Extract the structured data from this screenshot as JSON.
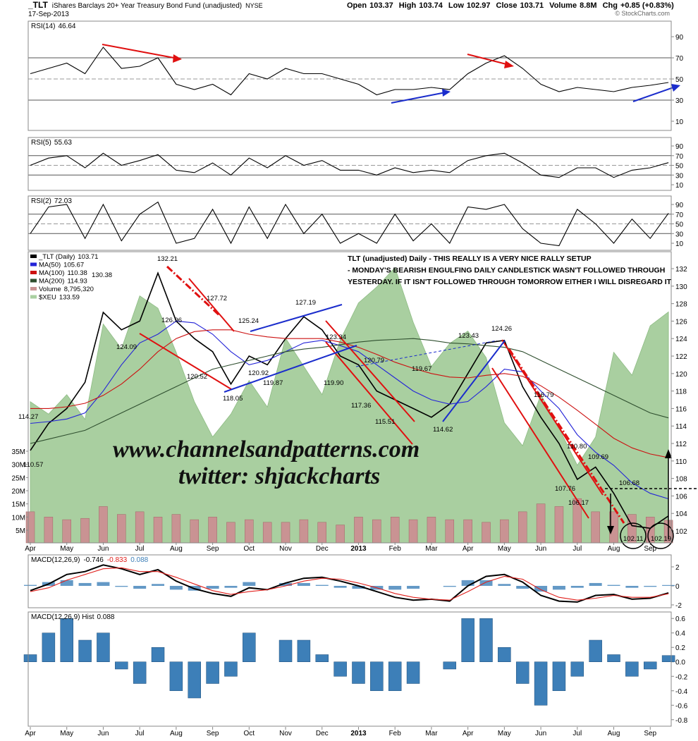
{
  "header": {
    "symbol": "_TLT",
    "name": "iShares Barclays 20+ Year Treasury Bond Fund (unadjusted)",
    "exchange": "NYSE",
    "date": "17-Sep-2013",
    "copyright": "© StockCharts.com",
    "quote": [
      {
        "label": "Open",
        "value": 103.37
      },
      {
        "label": "High",
        "value": 103.74
      },
      {
        "label": "Low",
        "value": 102.97
      },
      {
        "label": "Close",
        "value": 103.71
      },
      {
        "label": "Volume",
        "value": "8.8M"
      },
      {
        "label": "Chg",
        "value": "+0.85 (+0.83%)"
      }
    ]
  },
  "chart_data": [
    {
      "type": "line",
      "ylim": [
        1.3,
        104.7
      ],
      "yticks": [
        10,
        30,
        50,
        70,
        90
      ],
      "ref_lines": [
        30,
        50,
        70
      ],
      "series": [
        {
          "name": "RSI(14)",
          "color": "#000000",
          "values": [
            55,
            60,
            65,
            55,
            80,
            60,
            62,
            70,
            45,
            40,
            45,
            35,
            55,
            50,
            60,
            55,
            55,
            50,
            45,
            35,
            40,
            40,
            42,
            40,
            55,
            65,
            72,
            60,
            45,
            38,
            42,
            40,
            38,
            42,
            44,
            46.64
          ]
        }
      ]
    },
    {
      "type": "line",
      "ylim": [
        -1.6,
        107.5
      ],
      "yticks": [
        10,
        30,
        50,
        70,
        90
      ],
      "ref_lines": [
        30,
        50,
        70
      ],
      "series": [
        {
          "name": "RSI(5)",
          "color": "#000000",
          "values": [
            50,
            65,
            70,
            45,
            75,
            50,
            60,
            72,
            40,
            35,
            55,
            30,
            65,
            45,
            70,
            50,
            60,
            40,
            40,
            30,
            45,
            35,
            40,
            35,
            60,
            70,
            75,
            55,
            30,
            25,
            45,
            45,
            25,
            40,
            45,
            55.63
          ]
        }
      ]
    },
    {
      "type": "line",
      "ylim": [
        -4.5,
        107.5
      ],
      "yticks": [
        10,
        30,
        50,
        70,
        90
      ],
      "ref_lines": [
        30,
        50,
        70
      ],
      "series": [
        {
          "name": "RSI(2)",
          "color": "#000000",
          "values": [
            30,
            85,
            90,
            20,
            90,
            15,
            70,
            95,
            10,
            20,
            80,
            10,
            85,
            20,
            90,
            30,
            70,
            10,
            30,
            10,
            70,
            15,
            50,
            10,
            85,
            80,
            90,
            40,
            10,
            5,
            80,
            50,
            10,
            60,
            20,
            72.03
          ]
        }
      ]
    },
    {
      "type": "price",
      "categories": [
        "Apr",
        null,
        "May",
        null,
        "Jun",
        null,
        "Jul",
        null,
        "Aug",
        null,
        "Sep",
        null,
        "Oct",
        null,
        "Nov",
        null,
        "Dec",
        null,
        "2013",
        null,
        "Feb",
        null,
        "Mar",
        null,
        "Apr",
        null,
        "May",
        null,
        "Jun",
        null,
        "Jul",
        null,
        "Aug",
        null,
        "Sep",
        null
      ],
      "ylim": [
        100.63,
        133.94
      ],
      "yticks": [
        102,
        104,
        106,
        108,
        110,
        112,
        114,
        116,
        118,
        120,
        122,
        124,
        126,
        128,
        130,
        132
      ],
      "series": [
        {
          "name": "_TLT (Daily)",
          "color": "#000000",
          "values": [
            111.2,
            114.3,
            116,
            119,
            127,
            125,
            126,
            131.5,
            126,
            124,
            122.5,
            118.8,
            122,
            121,
            124,
            126.5,
            125,
            122,
            121,
            118,
            117,
            116,
            115,
            116.5,
            120,
            123.5,
            123.8,
            118.5,
            115,
            112,
            107.9,
            109.3,
            106.3,
            102.6,
            102.3,
            103.71
          ]
        },
        {
          "name": "MA(50)",
          "color": "#2424d8",
          "values": [
            114.3,
            114.5,
            114.8,
            115.5,
            118,
            121,
            123.5,
            124.5,
            126,
            125.8,
            124.5,
            122.5,
            121,
            121.5,
            122.5,
            123.5,
            123.8,
            123.2,
            122.5,
            121,
            119.5,
            118,
            117,
            116.5,
            116.8,
            118.5,
            120.5,
            120.2,
            118,
            116,
            113,
            111,
            109.5,
            107.5,
            106.3,
            105.67
          ]
        },
        {
          "name": "MA(100)",
          "color": "#cc1010",
          "values": [
            116,
            116,
            116.2,
            116.6,
            117.5,
            118.8,
            120.5,
            122.5,
            124,
            124.8,
            125,
            125,
            124.5,
            124.2,
            124,
            124,
            124,
            123.6,
            123,
            122.2,
            121.3,
            120.6,
            120,
            119.6,
            119.5,
            119.8,
            120,
            119.7,
            118.6,
            117.3,
            115.8,
            114.2,
            112.6,
            111.5,
            110.8,
            110.38
          ]
        },
        {
          "name": "MA(200)",
          "color": "#2f4f2f",
          "values": [
            112,
            112.5,
            113,
            113.5,
            114.5,
            115.5,
            116.5,
            117.5,
            118.5,
            119.5,
            120.5,
            121,
            121.5,
            122,
            122.5,
            122.8,
            123,
            123.3,
            123.6,
            123.8,
            123.9,
            124,
            123.8,
            123.5,
            123.4,
            123.2,
            123,
            122.5,
            121.5,
            120.5,
            119.5,
            118.5,
            117.5,
            116.5,
            115.5,
            114.93
          ]
        }
      ],
      "volume": {
        "name": "Volume",
        "legend_label": "8,795,320",
        "color": "#c99393",
        "ylim": [
          180000,
          110800000
        ],
        "yticks": [
          {
            "value": 5000000,
            "label": "5M"
          },
          {
            "value": 10000000,
            "label": "10M"
          },
          {
            "value": 15000000,
            "label": "15M"
          },
          {
            "value": 20000000,
            "label": "20M"
          },
          {
            "value": 25000000,
            "label": "25M"
          },
          {
            "value": 30000000,
            "label": "30M"
          },
          {
            "value": 35000000,
            "label": "35M"
          }
        ],
        "values": [
          12000000,
          10000000,
          9000000,
          9500000,
          14000000,
          11000000,
          12000000,
          10000000,
          11000000,
          9000000,
          10000000,
          8000000,
          9000000,
          8000000,
          8000000,
          9000000,
          8000000,
          7000000,
          10000000,
          9000000,
          10000000,
          9000000,
          10000000,
          9000000,
          9000000,
          8000000,
          9000000,
          12000000,
          15000000,
          14000000,
          17000000,
          12000000,
          12000000,
          11000000,
          10000000,
          8795320
        ]
      },
      "overlay": {
        "name": "$XEU",
        "color": "#a9cfa0",
        "ylim": [
          120.5,
          137
        ],
        "values": [
          128.5,
          127.8,
          128.9,
          127.5,
          132.9,
          131.5,
          134.5,
          133.8,
          131.3,
          128.5,
          126.5,
          127.8,
          129.7,
          128.2,
          132.1,
          130.5,
          128.9,
          132,
          134.1,
          135,
          136.1,
          133,
          130.5,
          131.8,
          132.5,
          131,
          127.3,
          126,
          128.9,
          127,
          124.9,
          126.5,
          131.3,
          130,
          132.8,
          133.59
        ]
      },
      "price_labels": [
        130.38,
        132.21,
        127.72,
        126.96,
        125.24,
        127.19,
        123.34,
        124.09,
        123.43,
        124.26,
        120.79,
        119.67,
        120.52,
        120.92,
        119.87,
        {
          "value": 119.9,
          "label": "119.90"
        },
        118.05,
        117.36,
        116.79,
        115.51,
        114.62,
        114.27,
        110.57,
        {
          "value": 110.8,
          "label": "110.80"
        },
        109.69,
        107.76,
        106.68,
        106.17,
        102.11,
        102.19
      ],
      "notes": [
        "TLT (unadjusted) Daily - THIS REALLY IS A VERY NICE RALLY SETUP",
        "- MONDAY'S BEARISH ENGULFING DAILY CANDLESTICK WASN'T FOLLOWED THROUGH",
        "YESTERDAY. IF IT ISN'T FOLLOWED THROUGH TOMORROW EITHER I WILL DISREGARD IT"
      ],
      "watermark": [
        "www.channelsandpatterns.com",
        "twitter: shjackcharts"
      ]
    },
    {
      "type": "macd",
      "ylim": [
        -2.3,
        3.26
      ],
      "yticks": [
        -2,
        0,
        2
      ],
      "series": [
        {
          "name": "MACD(12,26,9)",
          "color": "#000000",
          "values": [
            -0.5,
            0.2,
            1.2,
            1.5,
            2.2,
            1.8,
            1.2,
            1.7,
            0.5,
            -0.3,
            -0.8,
            -1.1,
            -0.2,
            -0.4,
            0.3,
            0.8,
            0.9,
            0.5,
            0,
            -0.6,
            -1.2,
            -1.5,
            -1.4,
            -1.6,
            0,
            1,
            1.2,
            0.4,
            -1,
            -1.6,
            -1.7,
            -1,
            -0.9,
            -1.4,
            -1.3,
            -0.746
          ]
        },
        {
          "color": "#e0201c",
          "values": [
            -0.6,
            -0.2,
            0.6,
            1.2,
            1.8,
            1.9,
            1.5,
            1.5,
            0.9,
            0.2,
            -0.5,
            -0.9,
            -0.6,
            -0.4,
            0,
            0.5,
            0.8,
            0.7,
            0.3,
            -0.2,
            -0.8,
            -1.2,
            -1.4,
            -1.5,
            -0.6,
            0.4,
            1,
            0.7,
            -0.4,
            -1.2,
            -1.5,
            -1.3,
            -1,
            -1.2,
            -1.2,
            -0.833
          ]
        }
      ]
    },
    {
      "type": "histogram",
      "categories": [
        "Apr",
        null,
        "May",
        null,
        "Jun",
        null,
        "Jul",
        null,
        "Aug",
        null,
        "Sep",
        null,
        "Oct",
        null,
        "Nov",
        null,
        "Dec",
        null,
        "2013",
        null,
        "Feb",
        null,
        "Mar",
        null,
        "Apr",
        null,
        "May",
        null,
        "Jun",
        null,
        "Jul",
        null,
        "Aug",
        null,
        "Sep",
        null
      ],
      "ylim": [
        -0.89,
        0.69
      ],
      "yticks": [
        0.6,
        0.4,
        0.2,
        {
          "value": 0,
          "label": "0.0"
        },
        -0.2,
        -0.4,
        -0.6,
        -0.8
      ],
      "series": [
        {
          "name": "MACD(12,26,9) Hist",
          "color": "#3d7fb8",
          "values": [
            0.1,
            0.4,
            0.6,
            0.3,
            0.4,
            -0.1,
            -0.3,
            0.2,
            -0.4,
            -0.5,
            -0.3,
            -0.2,
            0.4,
            0,
            0.3,
            0.3,
            0.1,
            -0.2,
            -0.3,
            -0.4,
            -0.4,
            -0.3,
            0,
            -0.1,
            0.6,
            0.6,
            0.2,
            -0.3,
            -0.6,
            -0.4,
            -0.2,
            0.3,
            0.1,
            -0.2,
            -0.1,
            0.088
          ]
        }
      ]
    }
  ]
}
